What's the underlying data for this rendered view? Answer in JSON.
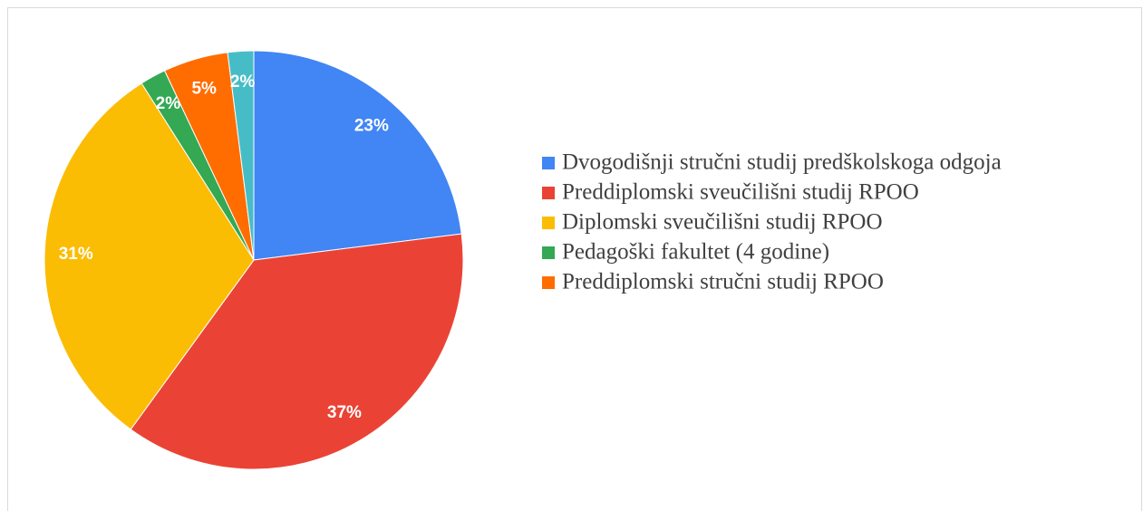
{
  "chart_data": {
    "type": "pie",
    "categories": [
      "Dvogodišnji stručni studij predškolskoga odgoja",
      "Preddiplomski sveučilišni studij RPOO",
      "Diplomski sveučilišni studij RPOO",
      "Pedagoški fakultet (4 godine)",
      "Preddiplomski stručni studij RPOO",
      null
    ],
    "values": [
      23,
      37,
      31,
      2,
      5,
      2
    ],
    "value_labels": [
      "23%",
      "37%",
      "31%",
      "2%",
      "5%",
      "2%"
    ],
    "colors": [
      "#4285f4",
      "#ea4335",
      "#fbbc04",
      "#34a853",
      "#ff6d01",
      "#46bdc6"
    ],
    "legend": "right"
  }
}
